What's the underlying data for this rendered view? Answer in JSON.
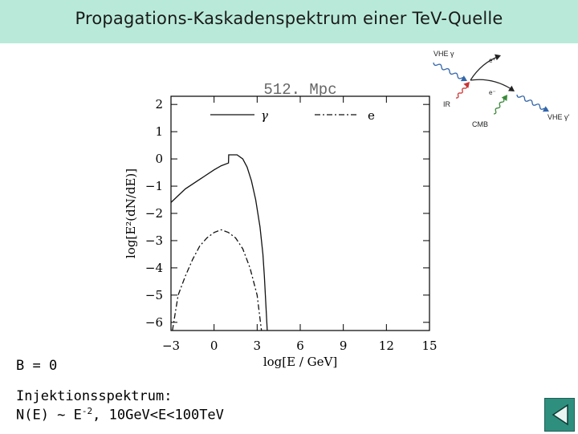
{
  "slide": {
    "title": "Propagations-Kaskadenspektrum einer TeV-Quelle",
    "b_field": "B = 0",
    "injection_title": "Injektionsspektrum:",
    "injection_formula": {
      "prefix": "N(E) ~ E",
      "exponent": "-2",
      "suffix": ", 10GeV<E<100TeV"
    }
  },
  "diagram": {
    "labels": [
      "VHE γ",
      "e⁺",
      "e⁻",
      "IR",
      "CMB",
      "VHE γ'"
    ],
    "colors": {
      "photon": "#3366aa",
      "ir": "#cc3333",
      "cmb": "#3a8a3a",
      "lepton": "#222222"
    }
  },
  "nav": {
    "icon": "back-arrow-icon",
    "color": "#2f8f7f"
  },
  "chart_data": {
    "type": "line",
    "title": "512. Mpc",
    "xlabel": "log[E / GeV]",
    "ylabel": "log[E²(dN/dE)]",
    "xlim": [
      -3,
      15
    ],
    "ylim": [
      -6.3,
      2.3
    ],
    "xticks": [
      "−3",
      "0",
      "3",
      "6",
      "9",
      "12",
      "15"
    ],
    "yticks": [
      "2",
      "1",
      "0",
      "−1",
      "−2",
      "−3",
      "−4",
      "−5",
      "−6"
    ],
    "legend": [
      "γ",
      "e"
    ],
    "series": [
      {
        "name": "γ",
        "dash": "solid",
        "x": [
          -3.0,
          -2.0,
          -1.0,
          0.0,
          0.5,
          1.0,
          1.02,
          1.6,
          2.0,
          2.3,
          2.6,
          2.9,
          3.2,
          3.4,
          3.5,
          3.6,
          3.7
        ],
        "y": [
          -1.6,
          -1.1,
          -0.75,
          -0.4,
          -0.25,
          -0.15,
          0.15,
          0.15,
          0.0,
          -0.3,
          -0.8,
          -1.5,
          -2.5,
          -3.5,
          -4.3,
          -5.3,
          -6.3
        ]
      },
      {
        "name": "e",
        "dash": "dashdot",
        "x": [
          -2.9,
          -2.5,
          -2.0,
          -1.5,
          -1.0,
          -0.5,
          0.0,
          0.5,
          1.0,
          1.5,
          2.0,
          2.5,
          3.0,
          3.3
        ],
        "y": [
          -6.3,
          -5.0,
          -4.3,
          -3.7,
          -3.2,
          -2.9,
          -2.7,
          -2.6,
          -2.7,
          -2.9,
          -3.3,
          -4.0,
          -5.0,
          -6.3
        ]
      }
    ]
  }
}
